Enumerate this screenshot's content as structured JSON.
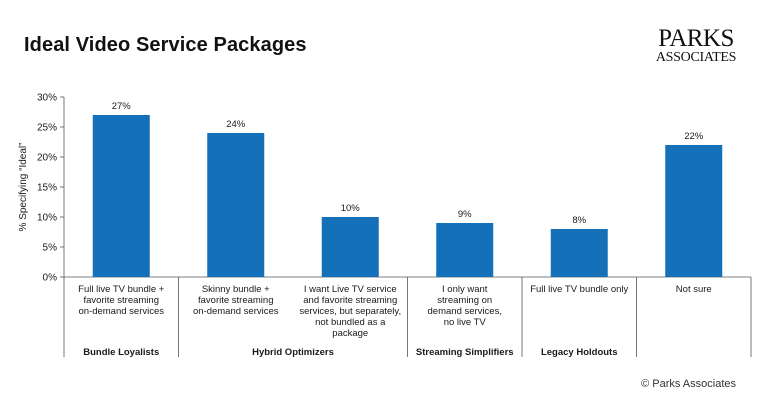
{
  "header": {
    "title": "Ideal Video Service Packages",
    "logo_line1": "PARKS",
    "logo_line2": "ASSOCIATES"
  },
  "footer": {
    "copyright": "© Parks Associates"
  },
  "colors": {
    "bar": "#1470b8",
    "axis": "#555555",
    "text": "#1a1a1a"
  },
  "chart_data": {
    "type": "bar",
    "title": "Ideal Video Service Packages",
    "ylabel": "% Specifying “Ideal”",
    "xlabel": "",
    "ylim": [
      0,
      30
    ],
    "yticks": [
      "0%",
      "5%",
      "10%",
      "15%",
      "20%",
      "25%",
      "30%"
    ],
    "categories": [
      [
        "Full live TV bundle +",
        "favorite streaming",
        "on-demand services"
      ],
      [
        "Skinny bundle +",
        "favorite streaming",
        "on-demand services"
      ],
      [
        "I want Live TV service",
        "and favorite streaming",
        "services, but separately,",
        "not bundled as a",
        "package"
      ],
      [
        "I only want",
        "streaming on",
        "demand services,",
        "no live TV"
      ],
      [
        "Full live TV bundle only"
      ],
      [
        "Not sure"
      ]
    ],
    "values": [
      27,
      24,
      10,
      9,
      8,
      22
    ],
    "value_labels": [
      "27%",
      "24%",
      "10%",
      "9%",
      "8%",
      "22%"
    ],
    "groups": [
      {
        "label": "Bundle Loyalists",
        "categories": [
          0
        ]
      },
      {
        "label": "Hybrid Optimizers",
        "categories": [
          1,
          2
        ]
      },
      {
        "label": "Streaming Simplifiers",
        "categories": [
          3
        ]
      },
      {
        "label": "Legacy Holdouts",
        "categories": [
          4
        ]
      },
      {
        "label": "",
        "categories": [
          5
        ]
      }
    ],
    "grid": false,
    "legend": "none"
  }
}
